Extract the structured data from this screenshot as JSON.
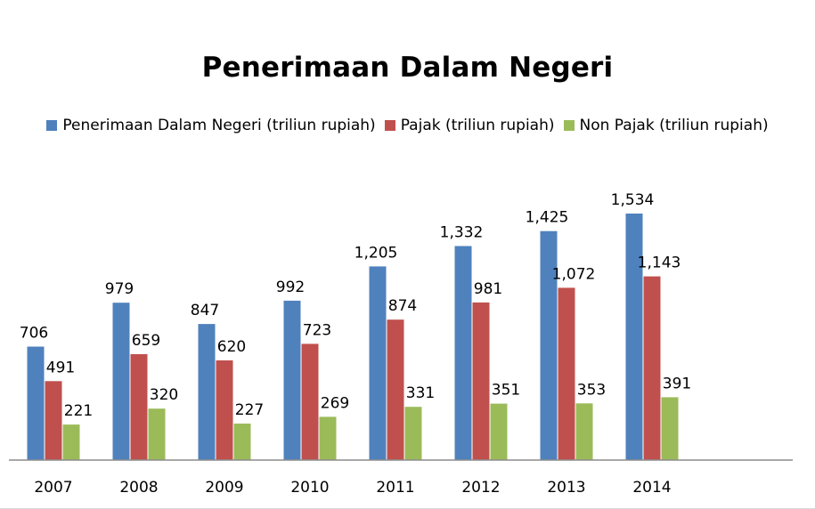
{
  "chart_data": {
    "type": "bar",
    "title": "Penerimaan Dalam Negeri",
    "categories": [
      "2007",
      "2008",
      "2009",
      "2010",
      "2011",
      "2012",
      "2013",
      "2014"
    ],
    "series": [
      {
        "name": "Penerimaan Dalam Negeri (triliun rupiah)",
        "color": "#4f81bd",
        "values": [
          706,
          979,
          847,
          992,
          1205,
          1332,
          1425,
          1534
        ],
        "labels": [
          "706",
          "979",
          "847",
          "992",
          "1,205",
          "1,332",
          "1,425",
          "1,534"
        ]
      },
      {
        "name": "Pajak (triliun rupiah)",
        "color": "#c0504d",
        "values": [
          491,
          659,
          620,
          723,
          874,
          981,
          1072,
          1143
        ],
        "labels": [
          "491",
          "659",
          "620",
          "723",
          "874",
          "981",
          "1,072",
          "1,143"
        ]
      },
      {
        "name": "Non Pajak (triliun rupiah)",
        "color": "#9bbb59",
        "values": [
          221,
          320,
          227,
          269,
          331,
          351,
          353,
          391
        ],
        "labels": [
          "221",
          "320",
          "227",
          "269",
          "331",
          "351",
          "353",
          "391"
        ]
      }
    ],
    "xlabel": "",
    "ylabel": "",
    "ylim": [
      0,
      1800
    ],
    "grid": false,
    "legend": "top"
  }
}
